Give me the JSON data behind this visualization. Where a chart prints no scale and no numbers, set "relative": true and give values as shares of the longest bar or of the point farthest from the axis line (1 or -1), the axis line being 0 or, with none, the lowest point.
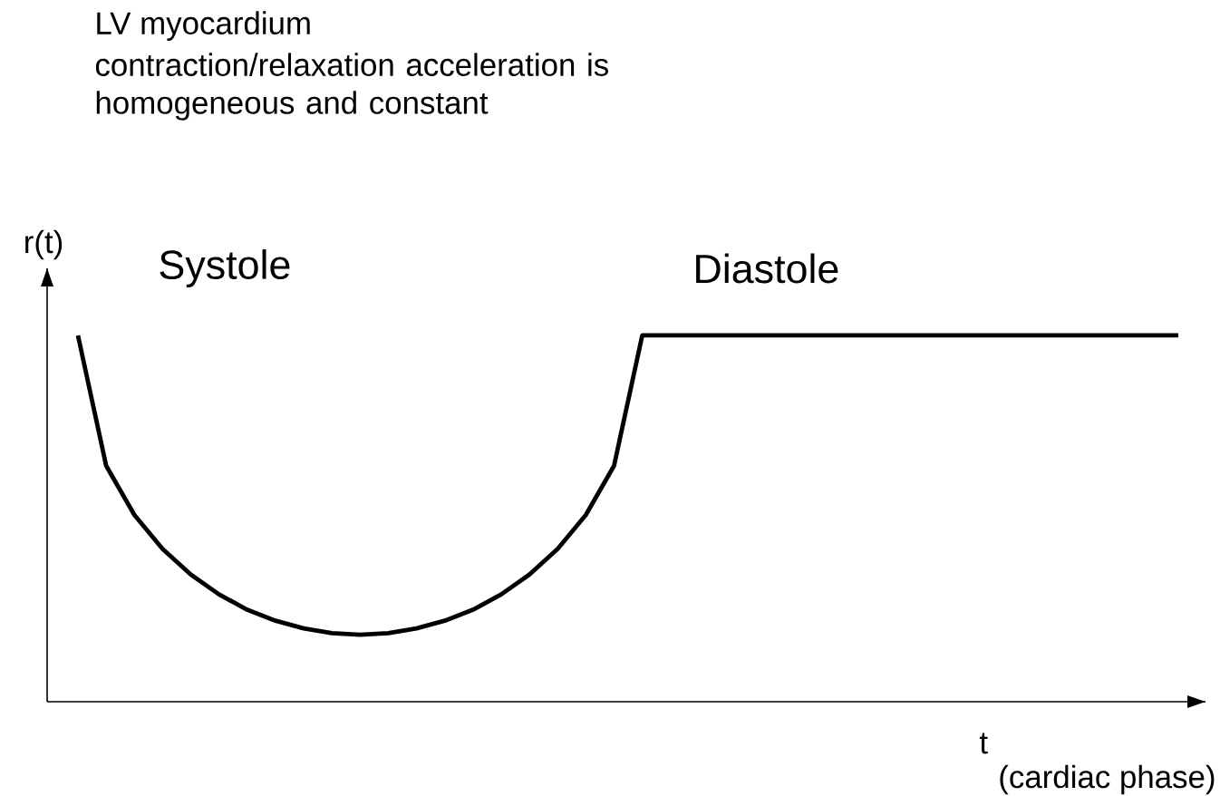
{
  "chart_data": {
    "type": "line",
    "relative": true,
    "title": "LV myocardium",
    "subtitle": "contraction/relaxation acceleration is homogeneous and constant",
    "xlabel": "t",
    "ylabel": "r(t)",
    "annotations": [
      "Systole",
      "Diastole",
      "(cardiac phase)"
    ],
    "categories": [
      null,
      null,
      null,
      null,
      null,
      null,
      null,
      null,
      null,
      null,
      null,
      null,
      null,
      null,
      null,
      null,
      null,
      null,
      null,
      null,
      null,
      null,
      null,
      null,
      null,
      null,
      null,
      null,
      null,
      null,
      null,
      null,
      null,
      null,
      null,
      null,
      null,
      null,
      null,
      null
    ],
    "color": "#000000",
    "values": [
      1,
      0.644,
      0.51,
      0.417,
      0.347,
      0.293,
      0.251,
      0.221,
      0.2,
      0.187,
      0.183,
      0.187,
      0.2,
      0.221,
      0.251,
      0.293,
      0.347,
      0.417,
      0.51,
      0.644,
      1,
      1,
      1,
      1,
      1,
      1,
      1,
      1,
      1,
      1,
      1,
      1,
      1,
      1,
      1,
      1,
      1,
      1,
      1,
      1
    ]
  }
}
